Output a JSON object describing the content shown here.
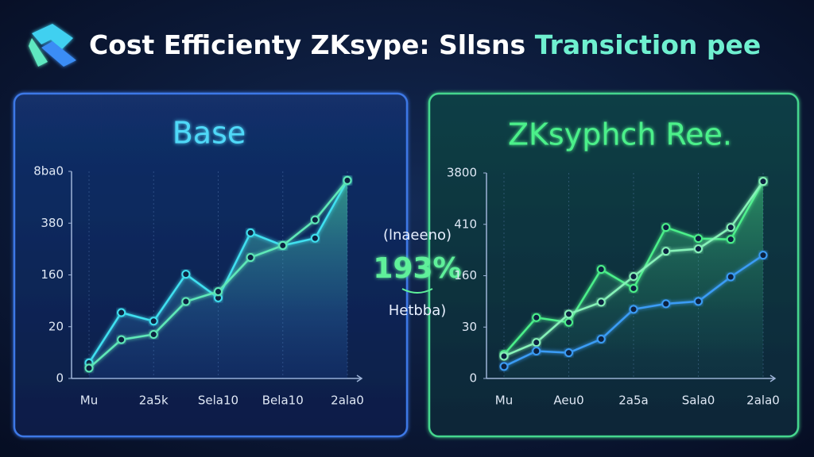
{
  "title": {
    "main": "Cost Efficienty ZKsype: Sllsns",
    "highlight": "Transiction pee"
  },
  "annotation": {
    "top": "(lnaeeno)",
    "value": "193%",
    "bottom": "Hetbba)"
  },
  "chart_data": [
    {
      "type": "line",
      "title": "Base",
      "x": [
        0,
        0.5,
        1,
        1.5,
        2,
        2.5,
        3,
        3.5,
        4
      ],
      "xlim": [
        0,
        4
      ],
      "xticks": [
        {
          "value": 0,
          "label": "Mu"
        },
        {
          "value": 1,
          "label": "2a5k"
        },
        {
          "value": 2,
          "label": "Sela10"
        },
        {
          "value": 3,
          "label": "Bela10"
        },
        {
          "value": 4,
          "label": "2ala0"
        }
      ],
      "ylim": [
        0,
        8000
      ],
      "yticks": [
        0,
        20,
        160,
        380,
        {
          "value": 8000,
          "label": "8ba0"
        }
      ],
      "grid": true,
      "series": [
        {
          "color": "#3fe0f0",
          "values": [
            6,
            58,
            35,
            163,
            98,
            339,
            285,
            316,
            6670
          ]
        },
        {
          "color": "#5ee8b8",
          "values": [
            4,
            15,
            17,
            88,
            115,
            234,
            285,
            864,
            6670
          ]
        }
      ]
    },
    {
      "type": "line",
      "title": "ZKsyphch Ree.",
      "x": [
        0,
        0.5,
        1,
        1.5,
        2,
        2.5,
        3,
        3.5,
        4
      ],
      "xlim": [
        0,
        4
      ],
      "xticks": [
        {
          "value": 0,
          "label": "Mu"
        },
        {
          "value": 1,
          "label": "Aeu0"
        },
        {
          "value": 2,
          "label": "2a5a"
        },
        {
          "value": 3,
          "label": "Sala0"
        },
        {
          "value": 4,
          "label": "2ala0"
        }
      ],
      "ylim": [
        0,
        3800
      ],
      "yticks": [
        0,
        30,
        160,
        410,
        3800
      ],
      "grid": true,
      "series": [
        {
          "color": "#4cf08a",
          "values": [
            14,
            54,
            42,
            191,
            128,
            395,
            341,
            337,
            3244
          ]
        },
        {
          "color": "#86f2b8",
          "values": [
            13,
            21,
            63,
            93,
            158,
            279,
            291,
            395,
            3244
          ]
        },
        {
          "color": "#3a9cf5",
          "values": [
            7,
            16,
            15,
            23,
            75,
            89,
            95,
            157,
            260
          ]
        }
      ]
    }
  ]
}
